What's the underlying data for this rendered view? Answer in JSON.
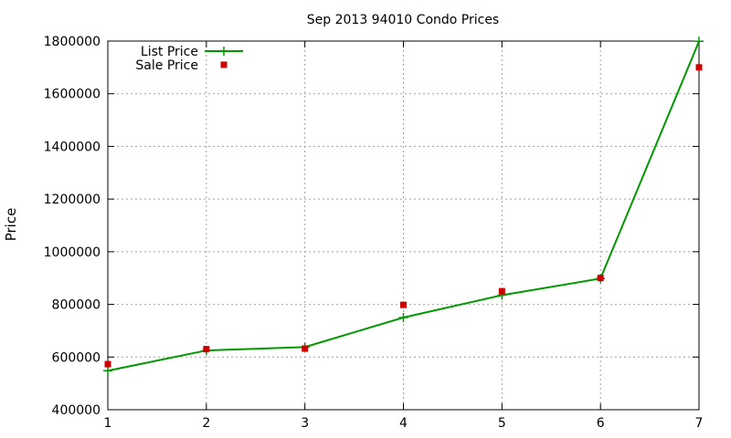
{
  "chart_data": {
    "type": "line",
    "title": "Sep 2013 94010 Condo Prices",
    "xlabel": "",
    "ylabel": "Price",
    "x": [
      1,
      2,
      3,
      4,
      5,
      6,
      7
    ],
    "xlim": [
      1,
      7
    ],
    "ylim": [
      400000,
      1800000
    ],
    "xticks": [
      "1",
      "2",
      "3",
      "4",
      "5",
      "6",
      "7"
    ],
    "yticks": [
      "400000",
      "600000",
      "800000",
      "1000000",
      "1200000",
      "1400000",
      "1600000",
      "1800000"
    ],
    "grid": true,
    "legend_position": "top-left",
    "series": [
      {
        "name": "List Price",
        "style": "line+plus",
        "color": "#009900",
        "values": [
          548000,
          625000,
          638000,
          750000,
          835000,
          898000,
          1799000
        ]
      },
      {
        "name": "Sale Price",
        "style": "square",
        "color": "#cc0000",
        "values": [
          573000,
          630000,
          632000,
          798000,
          850000,
          900000,
          1700000
        ]
      }
    ]
  }
}
